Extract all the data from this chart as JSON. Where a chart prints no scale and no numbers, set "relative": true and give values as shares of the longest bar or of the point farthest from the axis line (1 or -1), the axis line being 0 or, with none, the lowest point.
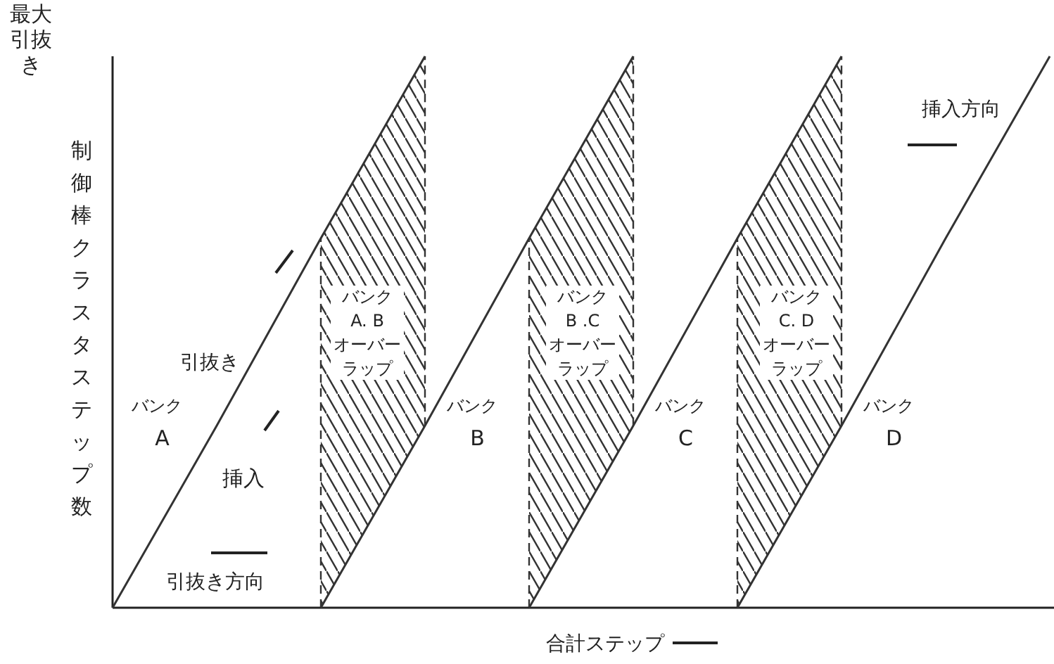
{
  "chart_data": {
    "type": "line",
    "relative": true,
    "xlabel": "合計ステップ",
    "ylabel": "制御棒クラスタステップ数",
    "categories": [
      null,
      null,
      null,
      null,
      null,
      null,
      null,
      null,
      null,
      null
    ],
    "series": [
      {
        "name": "バンク A",
        "color": "#333333",
        "values": [
          0,
          0.33,
          0.67,
          1,
          null,
          null,
          null,
          null,
          null,
          null
        ]
      },
      {
        "name": "バンク B",
        "color": "#333333",
        "values": [
          null,
          null,
          0,
          0.33,
          0.67,
          1,
          null,
          null,
          null,
          null
        ]
      },
      {
        "name": "バンク C",
        "color": "#333333",
        "values": [
          null,
          null,
          null,
          null,
          0,
          0.33,
          0.67,
          1,
          null,
          null
        ]
      },
      {
        "name": "バンク D",
        "color": "#333333",
        "values": [
          null,
          null,
          null,
          null,
          null,
          null,
          0,
          0.33,
          0.67,
          1
        ]
      }
    ],
    "annotations": [
      "最大引抜き",
      "引抜き",
      "挿入",
      "引抜き方向",
      "挿入方向",
      "バンク\nA. B\nオーバーラップ",
      "バンク\nB .C\nオーバーラップ",
      "バンク\nC. D\nオーバーラップ"
    ]
  }
}
